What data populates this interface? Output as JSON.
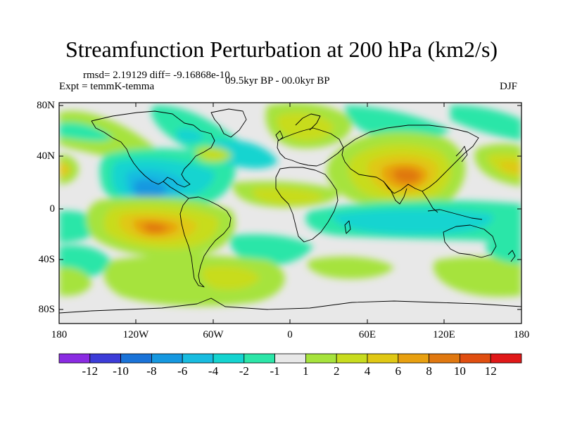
{
  "title": "Streamfunction Perturbation at 200 hPa (km2/s)",
  "stats": "rmsd= 2.19129 diff= -9.16868e-10",
  "experiment": "Expt = temmK-temma",
  "period": "09.5kyr BP - 00.0kyr BP",
  "season": "DJF",
  "y_ticks": [
    "80N",
    "40N",
    "0",
    "40S",
    "80S"
  ],
  "x_ticks": [
    "180",
    "120W",
    "60W",
    "0",
    "60E",
    "120E",
    "180"
  ],
  "colorbar": {
    "colors": [
      "#8a2be2",
      "#3c3cd8",
      "#1a73d8",
      "#1598e0",
      "#18bce0",
      "#14d4d0",
      "#2ce6a8",
      "#e8e8e8",
      "#a6e33c",
      "#c8dc1e",
      "#e0c814",
      "#e8a010",
      "#e07810",
      "#e04e10",
      "#e01818"
    ],
    "labels": [
      "-12",
      "-10",
      "-8",
      "-6",
      "-4",
      "-2",
      "-1",
      "1",
      "2",
      "4",
      "6",
      "8",
      "10",
      "12"
    ]
  },
  "chart_data": {
    "type": "contour-map",
    "variable": "Streamfunction Perturbation at 200 hPa",
    "units": "km2/s",
    "lon_range": [
      -180,
      180
    ],
    "lat_range": [
      -90,
      90
    ],
    "levels": [
      -12,
      -10,
      -8,
      -6,
      -4,
      -2,
      -1,
      1,
      2,
      4,
      6,
      8,
      10,
      12
    ],
    "features": [
      {
        "lon": 85,
        "lat": 25,
        "value": 9
      },
      {
        "lon": -110,
        "lat": -15,
        "value": 8
      },
      {
        "lon": -112,
        "lat": 12,
        "value": -8
      },
      {
        "lon": 170,
        "lat": 30,
        "value": 4
      },
      {
        "lon": -25,
        "lat": -55,
        "value": 2
      },
      {
        "lon": -160,
        "lat": 55,
        "value": -3
      },
      {
        "lon": 20,
        "lat": 65,
        "value": 4
      },
      {
        "lon": 50,
        "lat": -20,
        "value": -2
      },
      {
        "lon": 150,
        "lat": -20,
        "value": -2
      }
    ]
  }
}
